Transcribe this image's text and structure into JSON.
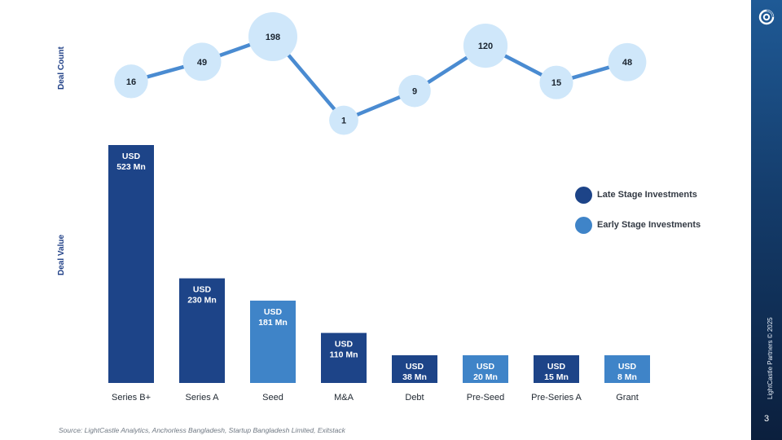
{
  "page": {
    "source_note": "Source: LightCastle Analytics, Anchorless Bangladesh, Startup Bangladesh Limited, Exitstack",
    "credit": "LightCastle Partners © 2025",
    "page_number": "3",
    "logo_icon": "circle-swirl-icon"
  },
  "colors": {
    "late_stage": "#1d4488",
    "early_stage": "#3f84c8",
    "bubble": "#cfe7fa",
    "line": "#4a8bd1",
    "axis_title": "#1f3f86"
  },
  "legend": [
    {
      "label": "Late Stage Investments",
      "color": "#1d4488"
    },
    {
      "label": "Early Stage Investments",
      "color": "#3f84c8"
    }
  ],
  "chart_data": [
    {
      "type": "bar",
      "ylabel": "Deal Value",
      "categories": [
        "Series B+",
        "Series A",
        "Seed",
        "M&A",
        "Debt",
        "Pre-Seed",
        "Pre-Series A",
        "Grant"
      ],
      "values": [
        523,
        230,
        181,
        110,
        38,
        20,
        15,
        8
      ],
      "stage": [
        "late",
        "late",
        "early",
        "late",
        "late",
        "early",
        "late",
        "early"
      ],
      "value_labels": [
        [
          "USD",
          "523 Mn"
        ],
        [
          "USD",
          "230 Mn"
        ],
        [
          "USD",
          "181 Mn"
        ],
        [
          "USD",
          "110 Mn"
        ],
        [
          "USD",
          "38 Mn"
        ],
        [
          "USD",
          "20 Mn"
        ],
        [
          "USD",
          "15 Mn"
        ],
        [
          "USD",
          "8 Mn"
        ]
      ],
      "legend_position": "right"
    },
    {
      "type": "line",
      "ylabel": "Deal Count",
      "categories": [
        "Series B+",
        "Series A",
        "Seed",
        "M&A",
        "Debt",
        "Pre-Seed",
        "Pre-Series A",
        "Grant"
      ],
      "values": [
        16,
        49,
        198,
        1,
        9,
        120,
        15,
        48
      ],
      "marker": "bubble sized by value"
    }
  ]
}
